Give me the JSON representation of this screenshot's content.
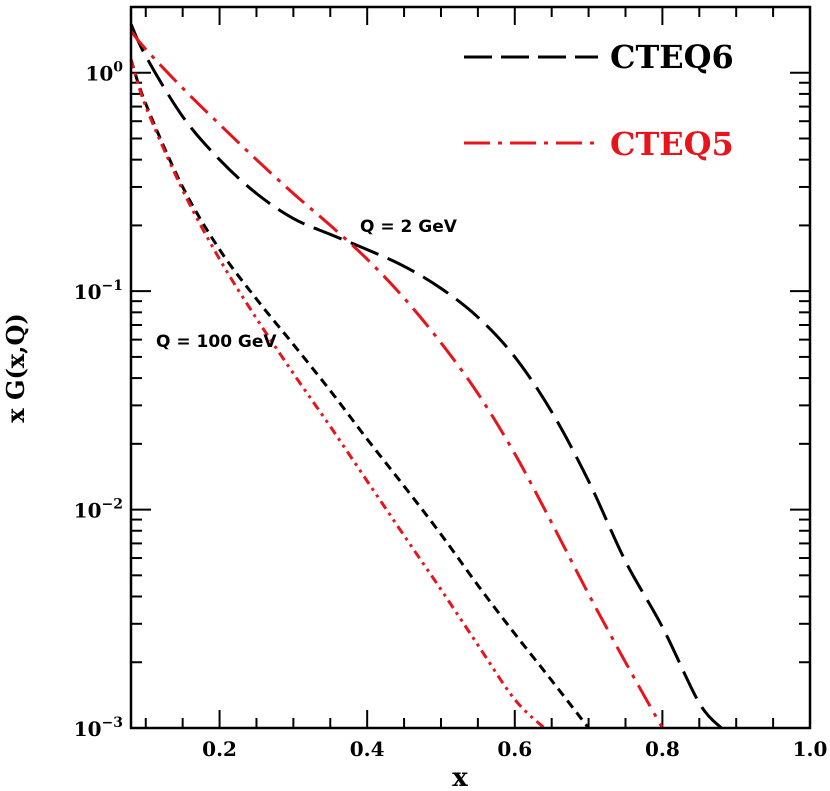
{
  "chart_data": {
    "type": "line",
    "title": "",
    "xlabel": "x",
    "ylabel": "x G(x,Q)",
    "xlim": [
      0.08,
      1.0
    ],
    "ylim": [
      0.001,
      2.0
    ],
    "yscale": "log",
    "xticks": [
      "0.2",
      "0.4",
      "0.6",
      "0.8",
      "1.0"
    ],
    "yticks": [
      {
        "value": 1,
        "base": "10",
        "exp": "0"
      },
      {
        "value": 0.1,
        "base": "10",
        "exp": "−1"
      },
      {
        "value": 0.01,
        "base": "10",
        "exp": "−2"
      },
      {
        "value": 0.001,
        "base": "10",
        "exp": "−3"
      }
    ],
    "legend": [
      {
        "label": "CTEQ6",
        "color": "#000000",
        "dash": "long-dash"
      },
      {
        "label": "CTEQ5",
        "color": "#e8141c",
        "dash": "dash-dot"
      }
    ],
    "annotations": [
      {
        "text": "Q = 2 GeV",
        "x": 0.4,
        "y": 0.19
      },
      {
        "text": "Q = 100 GeV",
        "x": 0.115,
        "y": 0.082
      }
    ],
    "series": [
      {
        "name": "CTEQ6, Q = 2 GeV",
        "color": "#000000",
        "dash": "long-dash",
        "x": [
          0.08,
          0.1,
          0.15,
          0.2,
          0.25,
          0.3,
          0.35,
          0.4,
          0.45,
          0.5,
          0.55,
          0.6,
          0.65,
          0.7,
          0.75,
          0.8,
          0.85,
          0.88
        ],
        "y": [
          1.67,
          1.19,
          0.63,
          0.4,
          0.28,
          0.215,
          0.182,
          0.155,
          0.13,
          0.103,
          0.076,
          0.05,
          0.028,
          0.0135,
          0.0058,
          0.0029,
          0.0013,
          0.001
        ]
      },
      {
        "name": "CTEQ5, Q = 2 GeV",
        "color": "#e8141c",
        "dash": "dash-dot",
        "x": [
          0.08,
          0.1,
          0.15,
          0.2,
          0.25,
          0.3,
          0.35,
          0.4,
          0.45,
          0.5,
          0.55,
          0.6,
          0.65,
          0.7,
          0.75,
          0.8
        ],
        "y": [
          1.55,
          1.28,
          0.85,
          0.58,
          0.4,
          0.28,
          0.2,
          0.14,
          0.093,
          0.058,
          0.034,
          0.018,
          0.0087,
          0.0041,
          0.002,
          0.001
        ]
      },
      {
        "name": "CTEQ6, Q = 100 GeV",
        "color": "#000000",
        "dash": "short-dash",
        "x": [
          0.08,
          0.1,
          0.15,
          0.2,
          0.25,
          0.3,
          0.35,
          0.4,
          0.45,
          0.5,
          0.55,
          0.6,
          0.65,
          0.7
        ],
        "y": [
          1.15,
          0.72,
          0.3,
          0.155,
          0.092,
          0.057,
          0.035,
          0.021,
          0.0128,
          0.0077,
          0.0045,
          0.0027,
          0.00165,
          0.001
        ]
      },
      {
        "name": "CTEQ5, Q = 100 GeV",
        "color": "#e8141c",
        "dash": "dash-dot-dot",
        "x": [
          0.08,
          0.1,
          0.15,
          0.2,
          0.25,
          0.3,
          0.35,
          0.4,
          0.45,
          0.5,
          0.55,
          0.6,
          0.64
        ],
        "y": [
          1.15,
          0.7,
          0.29,
          0.14,
          0.075,
          0.042,
          0.024,
          0.0135,
          0.0076,
          0.0043,
          0.0024,
          0.00135,
          0.001
        ]
      }
    ]
  }
}
